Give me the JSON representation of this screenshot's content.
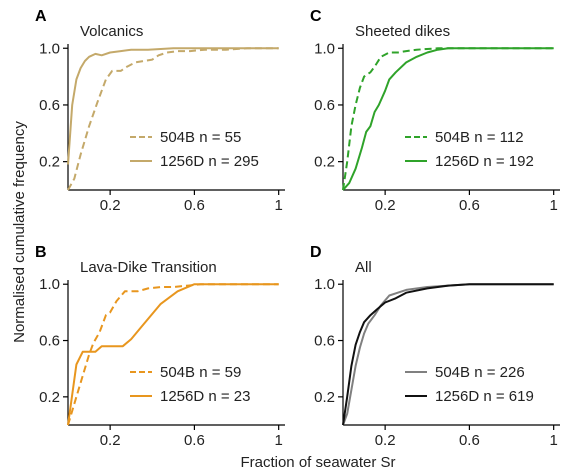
{
  "figure": {
    "ylabel": "Normalised cumulative frequency",
    "xlabel": "Fraction of seawater Sr"
  },
  "chart_data": [
    {
      "type": "line",
      "letter": "A",
      "title": "Volcanics",
      "xlim": [
        0,
        1.03
      ],
      "ylim": [
        0,
        1.03
      ],
      "xticks": [
        0.2,
        0.6,
        1
      ],
      "xtick_labels": [
        "0.2",
        "0.6",
        "1"
      ],
      "yticks": [
        0.2,
        0.6,
        1.0
      ],
      "ytick_labels": [
        "0.2",
        "0.6",
        "1.0"
      ],
      "color": "#c4a96a",
      "series": [
        {
          "name": "504B n = 55",
          "dash": true,
          "x": [
            0,
            0.03,
            0.06,
            0.1,
            0.14,
            0.18,
            0.21,
            0.25,
            0.28,
            0.32,
            0.36,
            0.4,
            0.43,
            0.47,
            0.52,
            0.58,
            0.65,
            0.75,
            0.85,
            1.0
          ],
          "y": [
            0,
            0.08,
            0.25,
            0.45,
            0.62,
            0.78,
            0.84,
            0.84,
            0.87,
            0.9,
            0.91,
            0.92,
            0.95,
            0.97,
            0.98,
            0.98,
            0.99,
            0.99,
            1.0,
            1.0
          ]
        },
        {
          "name": "1256D n = 295",
          "dash": false,
          "x": [
            0,
            0.02,
            0.04,
            0.06,
            0.08,
            0.1,
            0.13,
            0.16,
            0.2,
            0.25,
            0.3,
            0.38,
            0.5,
            0.6,
            1.0
          ],
          "y": [
            0.18,
            0.6,
            0.78,
            0.86,
            0.91,
            0.94,
            0.96,
            0.95,
            0.97,
            0.98,
            0.99,
            0.99,
            1.0,
            1.0,
            1.0
          ]
        }
      ]
    },
    {
      "type": "line",
      "letter": "C",
      "title": "Sheeted dikes",
      "xlim": [
        0,
        1.03
      ],
      "ylim": [
        0,
        1.03
      ],
      "xticks": [
        0.2,
        0.6,
        1
      ],
      "xtick_labels": [
        "0.2",
        "0.6",
        "1"
      ],
      "yticks": [
        0.2,
        0.6,
        1.0
      ],
      "ytick_labels": [
        "0.2",
        "0.6",
        "1.0"
      ],
      "color": "#2fa32a",
      "series": [
        {
          "name": "504B n = 112",
          "dash": true,
          "x": [
            0,
            0.02,
            0.04,
            0.06,
            0.08,
            0.1,
            0.13,
            0.15,
            0.18,
            0.22,
            0.26,
            0.3,
            0.35,
            0.45,
            1.0
          ],
          "y": [
            0,
            0.2,
            0.45,
            0.6,
            0.72,
            0.8,
            0.83,
            0.87,
            0.94,
            0.97,
            0.97,
            0.98,
            0.99,
            1.0,
            1.0
          ]
        },
        {
          "name": "1256D n = 192",
          "dash": false,
          "x": [
            0,
            0.03,
            0.06,
            0.09,
            0.11,
            0.13,
            0.15,
            0.17,
            0.2,
            0.22,
            0.25,
            0.3,
            0.35,
            0.4,
            0.45,
            0.5,
            1.0
          ],
          "y": [
            0,
            0.05,
            0.15,
            0.3,
            0.41,
            0.45,
            0.55,
            0.6,
            0.7,
            0.78,
            0.83,
            0.9,
            0.94,
            0.97,
            0.99,
            1.0,
            1.0
          ]
        }
      ]
    },
    {
      "type": "line",
      "letter": "B",
      "title": "Lava-Dike Transition",
      "xlim": [
        0,
        1.03
      ],
      "ylim": [
        0,
        1.03
      ],
      "xticks": [
        0.2,
        0.6,
        1
      ],
      "xtick_labels": [
        "0.2",
        "0.6",
        "1"
      ],
      "yticks": [
        0.2,
        0.6,
        1.0
      ],
      "ytick_labels": [
        "0.2",
        "0.6",
        "1.0"
      ],
      "color": "#e8961e",
      "series": [
        {
          "name": "504B n = 59",
          "dash": true,
          "x": [
            0,
            0.05,
            0.1,
            0.12,
            0.15,
            0.18,
            0.2,
            0.23,
            0.27,
            0.33,
            0.38,
            0.44,
            0.5,
            0.57,
            0.63,
            0.7,
            1.0
          ],
          "y": [
            0,
            0.25,
            0.5,
            0.58,
            0.66,
            0.78,
            0.8,
            0.88,
            0.95,
            0.95,
            0.97,
            0.98,
            0.98,
            0.99,
            1.0,
            1.0,
            1.0
          ]
        },
        {
          "name": "1256D n = 23",
          "dash": false,
          "x": [
            0,
            0.04,
            0.07,
            0.1,
            0.13,
            0.16,
            0.19,
            0.22,
            0.26,
            0.3,
            0.35,
            0.44,
            0.52,
            0.6,
            0.7,
            1.0
          ],
          "y": [
            0,
            0.43,
            0.52,
            0.52,
            0.52,
            0.56,
            0.56,
            0.56,
            0.56,
            0.61,
            0.7,
            0.86,
            0.95,
            1.0,
            1.0,
            1.0
          ]
        }
      ]
    },
    {
      "type": "line",
      "letter": "D",
      "title": "All",
      "xlim": [
        0,
        1.03
      ],
      "ylim": [
        0,
        1.03
      ],
      "xticks": [
        0.2,
        0.6,
        1
      ],
      "xtick_labels": [
        "0.2",
        "0.6",
        "1"
      ],
      "yticks": [
        0.2,
        0.6,
        1.0
      ],
      "ytick_labels": [
        "0.2",
        "0.6",
        "1.0"
      ],
      "series": [
        {
          "name": "504B n = 226",
          "dash": false,
          "color": "#808080",
          "x": [
            0,
            0.02,
            0.04,
            0.06,
            0.08,
            0.1,
            0.12,
            0.15,
            0.18,
            0.22,
            0.26,
            0.3,
            0.4,
            0.5,
            0.6,
            0.7,
            1.0
          ],
          "y": [
            0,
            0.08,
            0.25,
            0.42,
            0.55,
            0.65,
            0.72,
            0.78,
            0.85,
            0.92,
            0.94,
            0.96,
            0.98,
            0.99,
            1.0,
            1.0,
            1.0
          ]
        },
        {
          "name": "1256D n = 619",
          "dash": false,
          "color": "#111111",
          "x": [
            0,
            0.02,
            0.04,
            0.06,
            0.08,
            0.1,
            0.13,
            0.16,
            0.2,
            0.25,
            0.3,
            0.4,
            0.5,
            0.6,
            0.7,
            1.0
          ],
          "y": [
            0,
            0.2,
            0.42,
            0.57,
            0.66,
            0.73,
            0.78,
            0.82,
            0.87,
            0.9,
            0.94,
            0.97,
            0.99,
            1.0,
            1.0,
            1.0
          ]
        }
      ]
    }
  ]
}
